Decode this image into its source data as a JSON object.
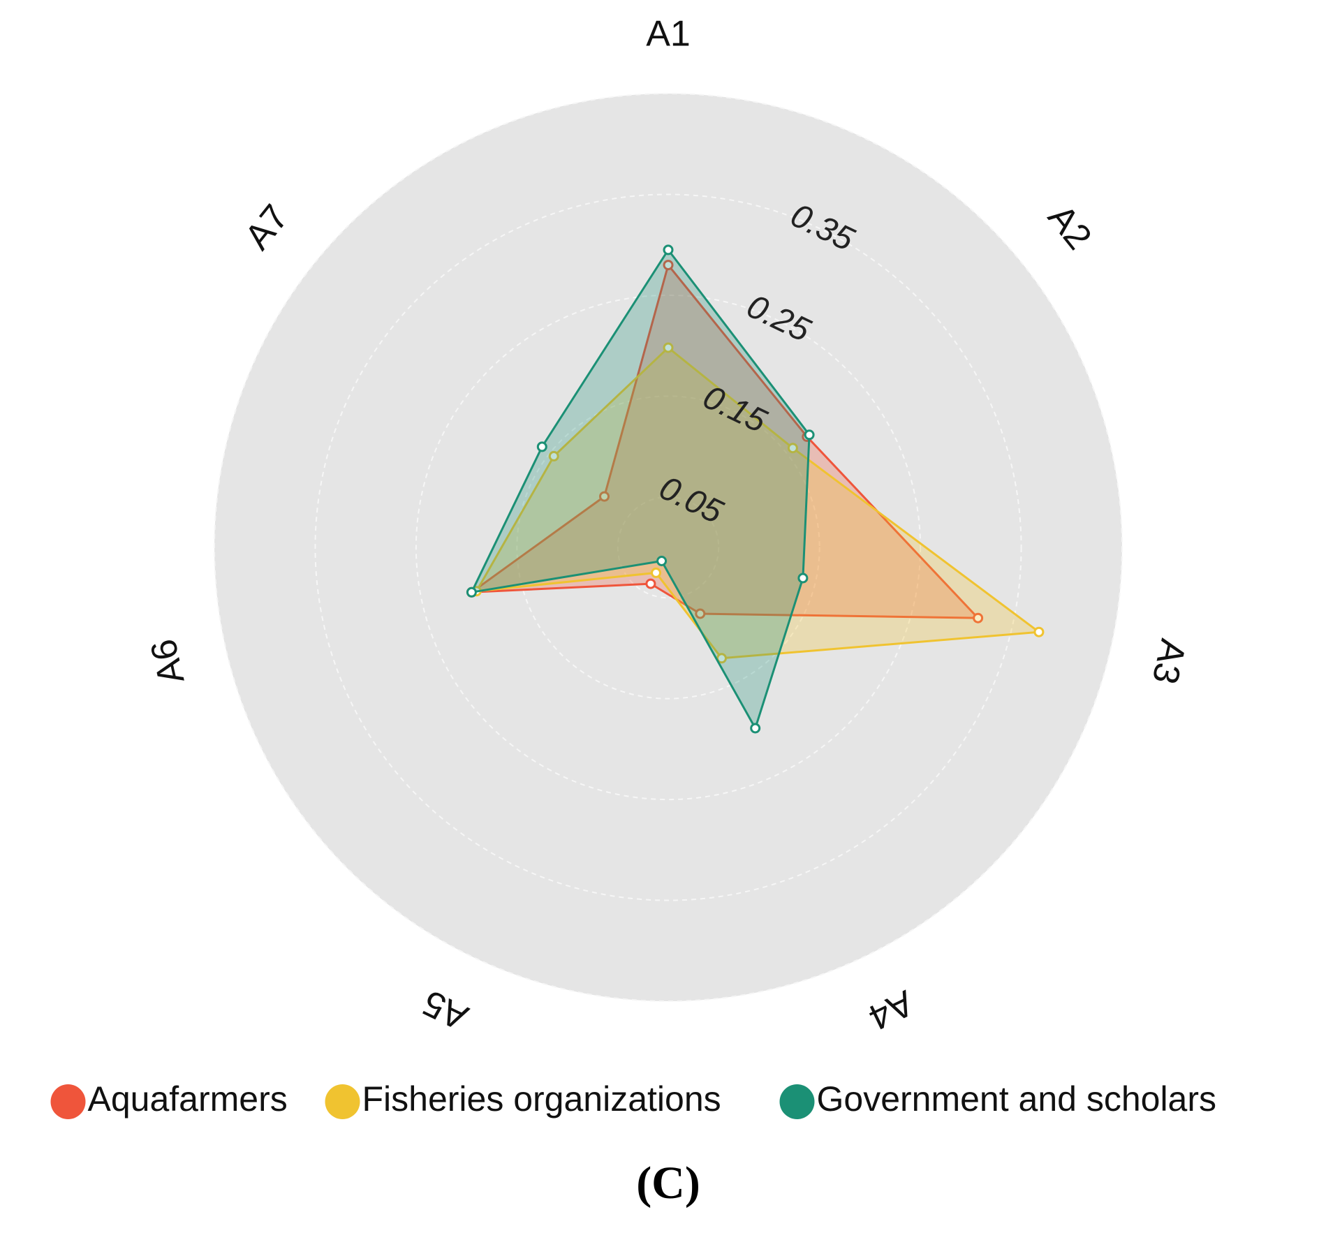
{
  "chart_data": {
    "type": "radar",
    "panel_label": "(C)",
    "axes": [
      "A1",
      "A2",
      "A3",
      "A4",
      "A5",
      "A6",
      "A7"
    ],
    "radial_ticks": [
      "0.05",
      "0.15",
      "0.25",
      "0.35"
    ],
    "radial_tick_values": [
      0.05,
      0.15,
      0.25,
      0.35
    ],
    "grid_values": [
      0.05,
      0.15,
      0.25,
      0.35,
      0.45
    ],
    "rmax": 0.45,
    "grid": true,
    "legend_placement": "bottom",
    "series": [
      {
        "name": "Aquafarmers",
        "color": "#ef553b",
        "values": [
          0.28,
          0.176,
          0.315,
          0.073,
          0.04,
          0.2,
          0.081
        ]
      },
      {
        "name": "Fisheries organizations",
        "color": "#f0c330",
        "values": [
          0.198,
          0.158,
          0.377,
          0.122,
          0.028,
          0.195,
          0.145
        ]
      },
      {
        "name": "Government and scholars",
        "color": "#1b9075",
        "values": [
          0.295,
          0.179,
          0.137,
          0.199,
          0.015,
          0.2,
          0.16
        ]
      }
    ]
  }
}
